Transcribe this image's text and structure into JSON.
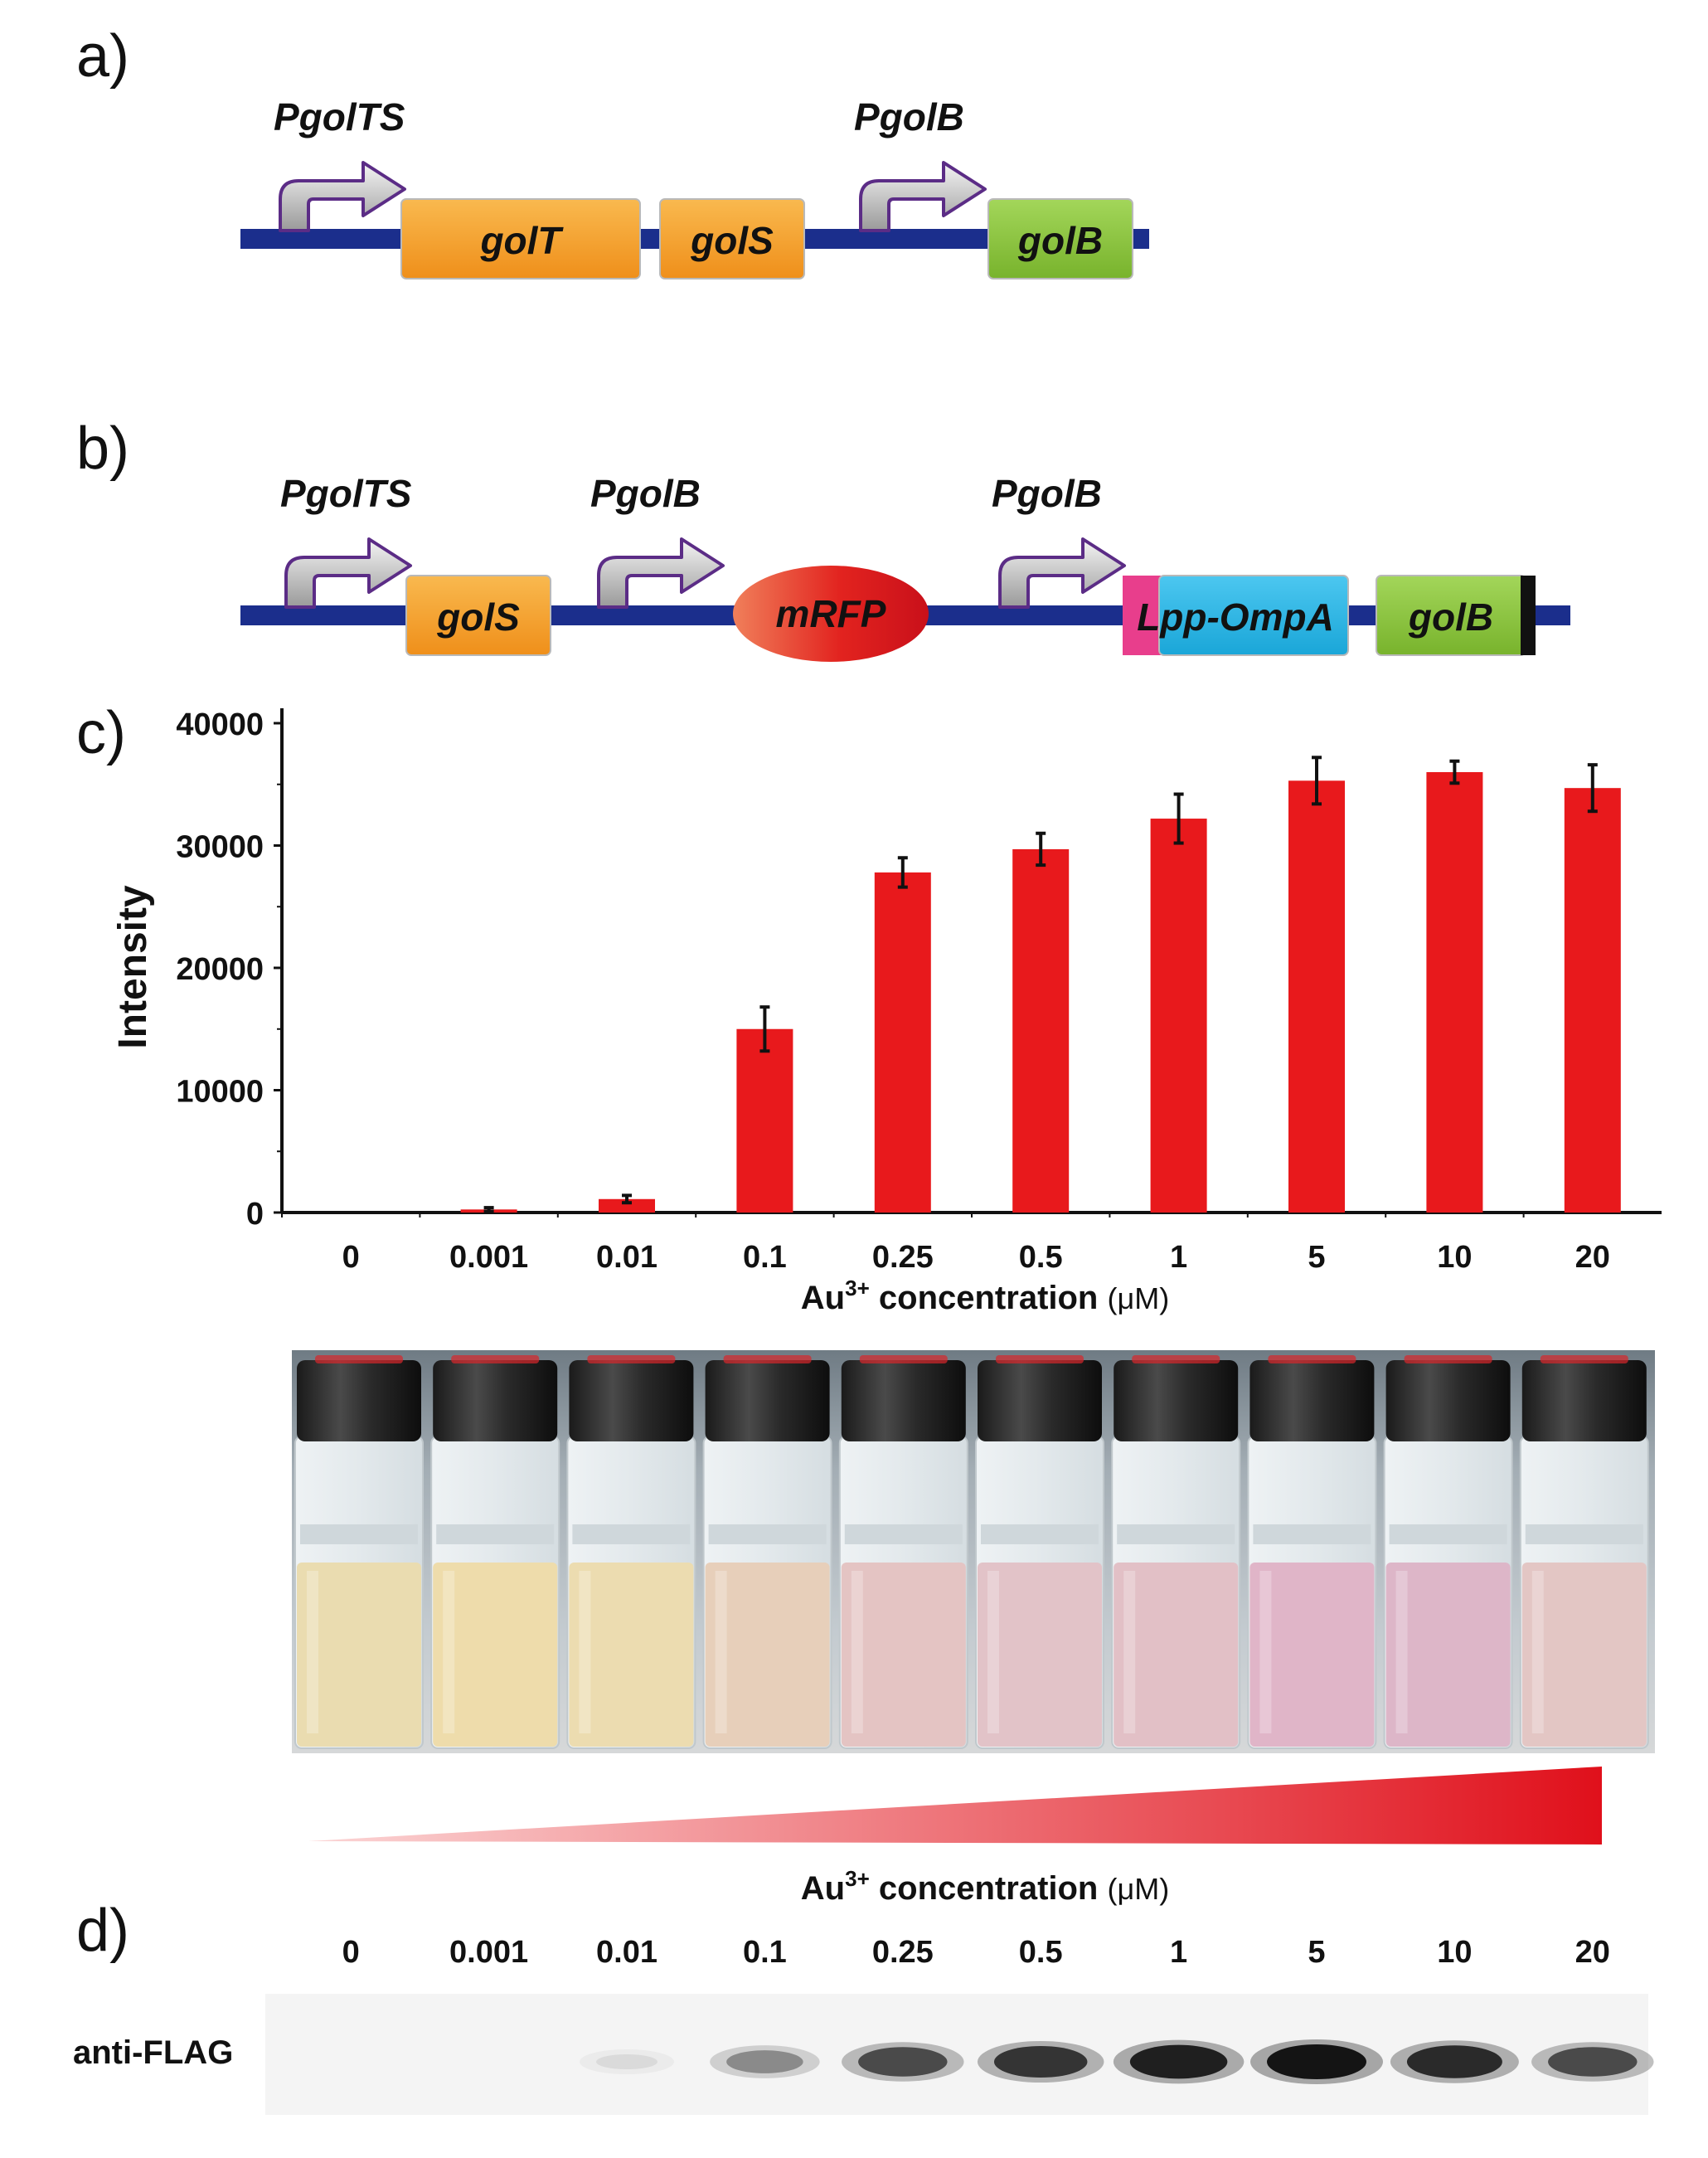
{
  "panels": {
    "a": "a)",
    "b": "b)",
    "c": "c)",
    "d": "d)"
  },
  "colors": {
    "backbone": "#1b2e8c",
    "gene_orange": "#f5a030",
    "gene_green": "#8cc63f",
    "gene_blue": "#29b6e6",
    "gene_pink": "#e83e8c",
    "mrfp_red": "#e01818",
    "bar_red": "#e8191c",
    "promoter_arrow": "#bfbfbf",
    "promoter_outline": "#6a3d99"
  },
  "construct_a": {
    "promoters": [
      "PgolTS",
      "PgolB"
    ],
    "genes": [
      "golT",
      "golS",
      "golB"
    ]
  },
  "construct_b": {
    "promoters": [
      "PgolTS",
      "PgolB",
      "PgolB"
    ],
    "genes": [
      "golS",
      "mRFP",
      "Lpp-OmpA",
      "golB"
    ]
  },
  "chart_data": {
    "type": "bar",
    "categories": [
      "0",
      "0.001",
      "0.01",
      "0.1",
      "0.25",
      "0.5",
      "1",
      "5",
      "10",
      "20"
    ],
    "values": [
      0,
      250,
      1100,
      15000,
      27800,
      29700,
      32200,
      35300,
      36000,
      34700
    ],
    "errors": [
      0,
      150,
      300,
      1800,
      1200,
      1300,
      2000,
      1900,
      900,
      1900
    ],
    "yticks": [
      "0",
      "10000",
      "20000",
      "30000",
      "40000"
    ],
    "ylim": [
      0,
      40000
    ],
    "ylabel": "Intensity",
    "xlabel_main": "Au",
    "xlabel_sup": "3+",
    "xlabel_rest": " concentration ",
    "xlabel_unit": "(μM)"
  },
  "vials": {
    "count": 10,
    "liquid_colors": [
      "#eadcb0",
      "#eedcab",
      "#ecdcb0",
      "#e7cfba",
      "#e4c4c3",
      "#e2c3c8",
      "#e2c0c6",
      "#e0b5c8",
      "#ddb6c8",
      "#e3c6c4"
    ]
  },
  "gradient_label": {
    "main": "Au",
    "sup": "3+",
    "rest": " concentration ",
    "unit": "(μM)"
  },
  "blot": {
    "lane_labels": [
      "0",
      "0.001",
      "0.01",
      "0.1",
      "0.25",
      "0.5",
      "1",
      "5",
      "10",
      "20"
    ],
    "band_intensity": [
      0,
      0,
      0.08,
      0.45,
      0.75,
      0.85,
      0.95,
      1.0,
      0.9,
      0.75
    ],
    "row_label": "anti-FLAG"
  }
}
